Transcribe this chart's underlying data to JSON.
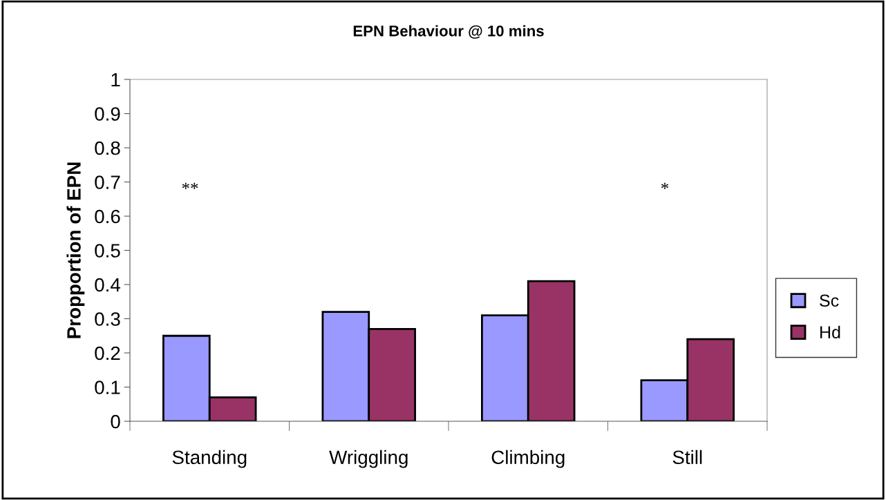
{
  "chart_data": {
    "type": "bar",
    "title": "EPN Behaviour @ 10 mins",
    "ylabel": "Propportion of EPN",
    "categories": [
      "Standing",
      "Wriggling",
      "Climbing",
      "Still"
    ],
    "series": [
      {
        "name": "Sc",
        "color": "#9999ff",
        "values": [
          0.25,
          0.32,
          0.31,
          0.12
        ]
      },
      {
        "name": "Hd",
        "color": "#993366",
        "values": [
          0.07,
          0.27,
          0.41,
          0.24
        ]
      }
    ],
    "ylim": [
      0,
      1
    ],
    "yticks": [
      0,
      0.1,
      0.2,
      0.3,
      0.4,
      0.5,
      0.6,
      0.7,
      0.8,
      0.9,
      1
    ],
    "annotations": [
      "**",
      "*"
    ],
    "legend": "right",
    "grid": false
  }
}
